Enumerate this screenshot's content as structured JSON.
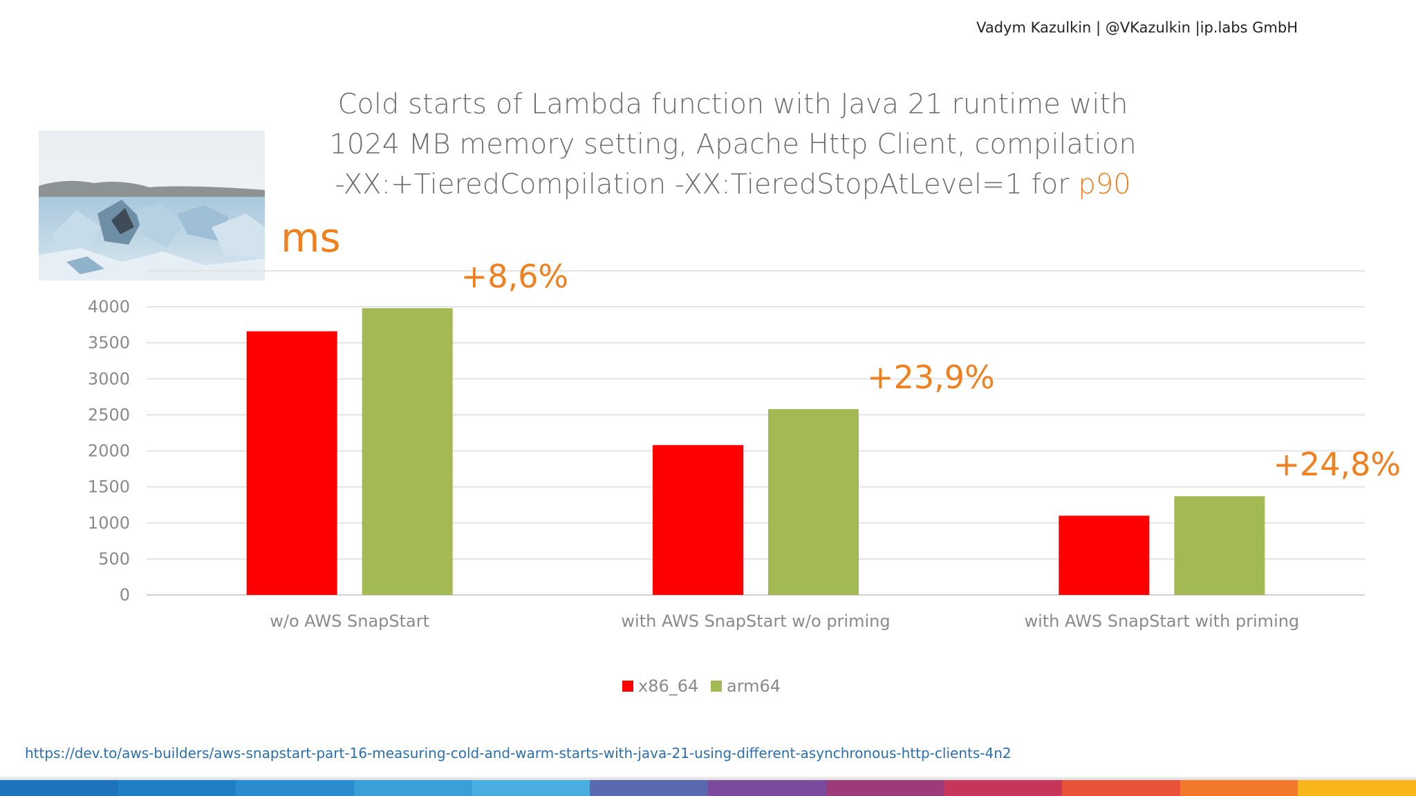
{
  "header": {
    "author": "Vadym Kazulkin | @VKazulkin |ip.labs GmbH"
  },
  "title": {
    "line1": "Cold starts of Lambda function with Java 21 runtime with",
    "line2": "1024 MB memory setting, Apache Http Client,  compilation",
    "line3": "-XX:+TieredCompilation -XX:TieredStopAtLevel=1 for ",
    "highlight": "p90"
  },
  "unit_label": "ms",
  "chart_data": {
    "type": "bar",
    "categories": [
      "w/o AWS SnapStart",
      "with AWS SnapStart w/o priming",
      "with AWS SnapStart with priming"
    ],
    "series": [
      {
        "name": "x86_64",
        "values": [
          3660,
          2080,
          1100
        ],
        "color": "#ff0000"
      },
      {
        "name": "arm64",
        "values": [
          3980,
          2580,
          1370
        ],
        "color": "#a3b953"
      }
    ],
    "ylim": [
      0,
      4000
    ],
    "yticks": [
      0,
      500,
      1000,
      1500,
      2000,
      2500,
      3000,
      3500,
      4000
    ],
    "grid": true,
    "legend": "bottom",
    "annotations": [
      "+8,6%",
      "+23,9%",
      "+24,8%"
    ],
    "annotation_color": "#f07f1d"
  },
  "footer": {
    "link": "https://dev.to/aws-builders/aws-snapstart-part-16-measuring-cold-and-warm-starts-with-java-21-using-different-asynchronous-http-clients-4n2"
  },
  "stripe_colors": [
    "#1e73be",
    "#1f7fc4",
    "#2a8ccc",
    "#3a9fd6",
    "#4aaee0",
    "#5a68b0",
    "#7b4a9c",
    "#9c3a7a",
    "#c8355a",
    "#e8533a",
    "#f2792a",
    "#f8b61a"
  ]
}
